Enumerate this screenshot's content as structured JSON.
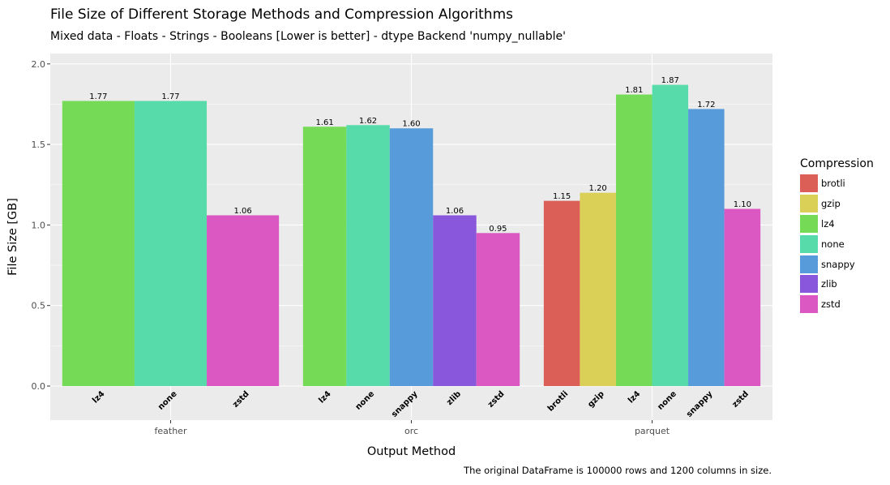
{
  "chart_data": {
    "type": "bar",
    "title": "File Size of Different Storage Methods and Compression Algorithms",
    "subtitle": "Mixed data - Floats - Strings - Booleans [Lower is better] - dtype Backend 'numpy_nullable'",
    "caption": "The original DataFrame is 100000 rows and 1200 columns in size.",
    "xlabel": "Output Method",
    "ylabel": "File Size [GB]",
    "ylim": [
      -0.2,
      2.07
    ],
    "yticks": [
      "0.0",
      "0.5",
      "1.0",
      "1.5",
      "2.0"
    ],
    "grid": true,
    "legend": {
      "title": "Compression",
      "placement": "right",
      "entries": [
        {
          "name": "brotli",
          "color": "#db5f57"
        },
        {
          "name": "gzip",
          "color": "#dbd057"
        },
        {
          "name": "lz4",
          "color": "#75db57"
        },
        {
          "name": "none",
          "color": "#57dbab"
        },
        {
          "name": "snappy",
          "color": "#579bdb"
        },
        {
          "name": "zlib",
          "color": "#8857db"
        },
        {
          "name": "zstd",
          "color": "#db57c1"
        }
      ]
    },
    "groups": [
      {
        "name": "feather",
        "bars": [
          {
            "compression": "lz4",
            "value": 1.77,
            "label": "1.77"
          },
          {
            "compression": "none",
            "value": 1.77,
            "label": "1.77"
          },
          {
            "compression": "zstd",
            "value": 1.06,
            "label": "1.06"
          }
        ]
      },
      {
        "name": "orc",
        "bars": [
          {
            "compression": "lz4",
            "value": 1.61,
            "label": "1.61"
          },
          {
            "compression": "none",
            "value": 1.62,
            "label": "1.62"
          },
          {
            "compression": "snappy",
            "value": 1.6,
            "label": "1.60"
          },
          {
            "compression": "zlib",
            "value": 1.06,
            "label": "1.06"
          },
          {
            "compression": "zstd",
            "value": 0.95,
            "label": "0.95"
          }
        ]
      },
      {
        "name": "parquet",
        "bars": [
          {
            "compression": "brotli",
            "value": 1.15,
            "label": "1.15"
          },
          {
            "compression": "gzip",
            "value": 1.2,
            "label": "1.20"
          },
          {
            "compression": "lz4",
            "value": 1.81,
            "label": "1.81"
          },
          {
            "compression": "none",
            "value": 1.87,
            "label": "1.87"
          },
          {
            "compression": "snappy",
            "value": 1.72,
            "label": "1.72"
          },
          {
            "compression": "zstd",
            "value": 1.1,
            "label": "1.10"
          }
        ]
      }
    ]
  }
}
